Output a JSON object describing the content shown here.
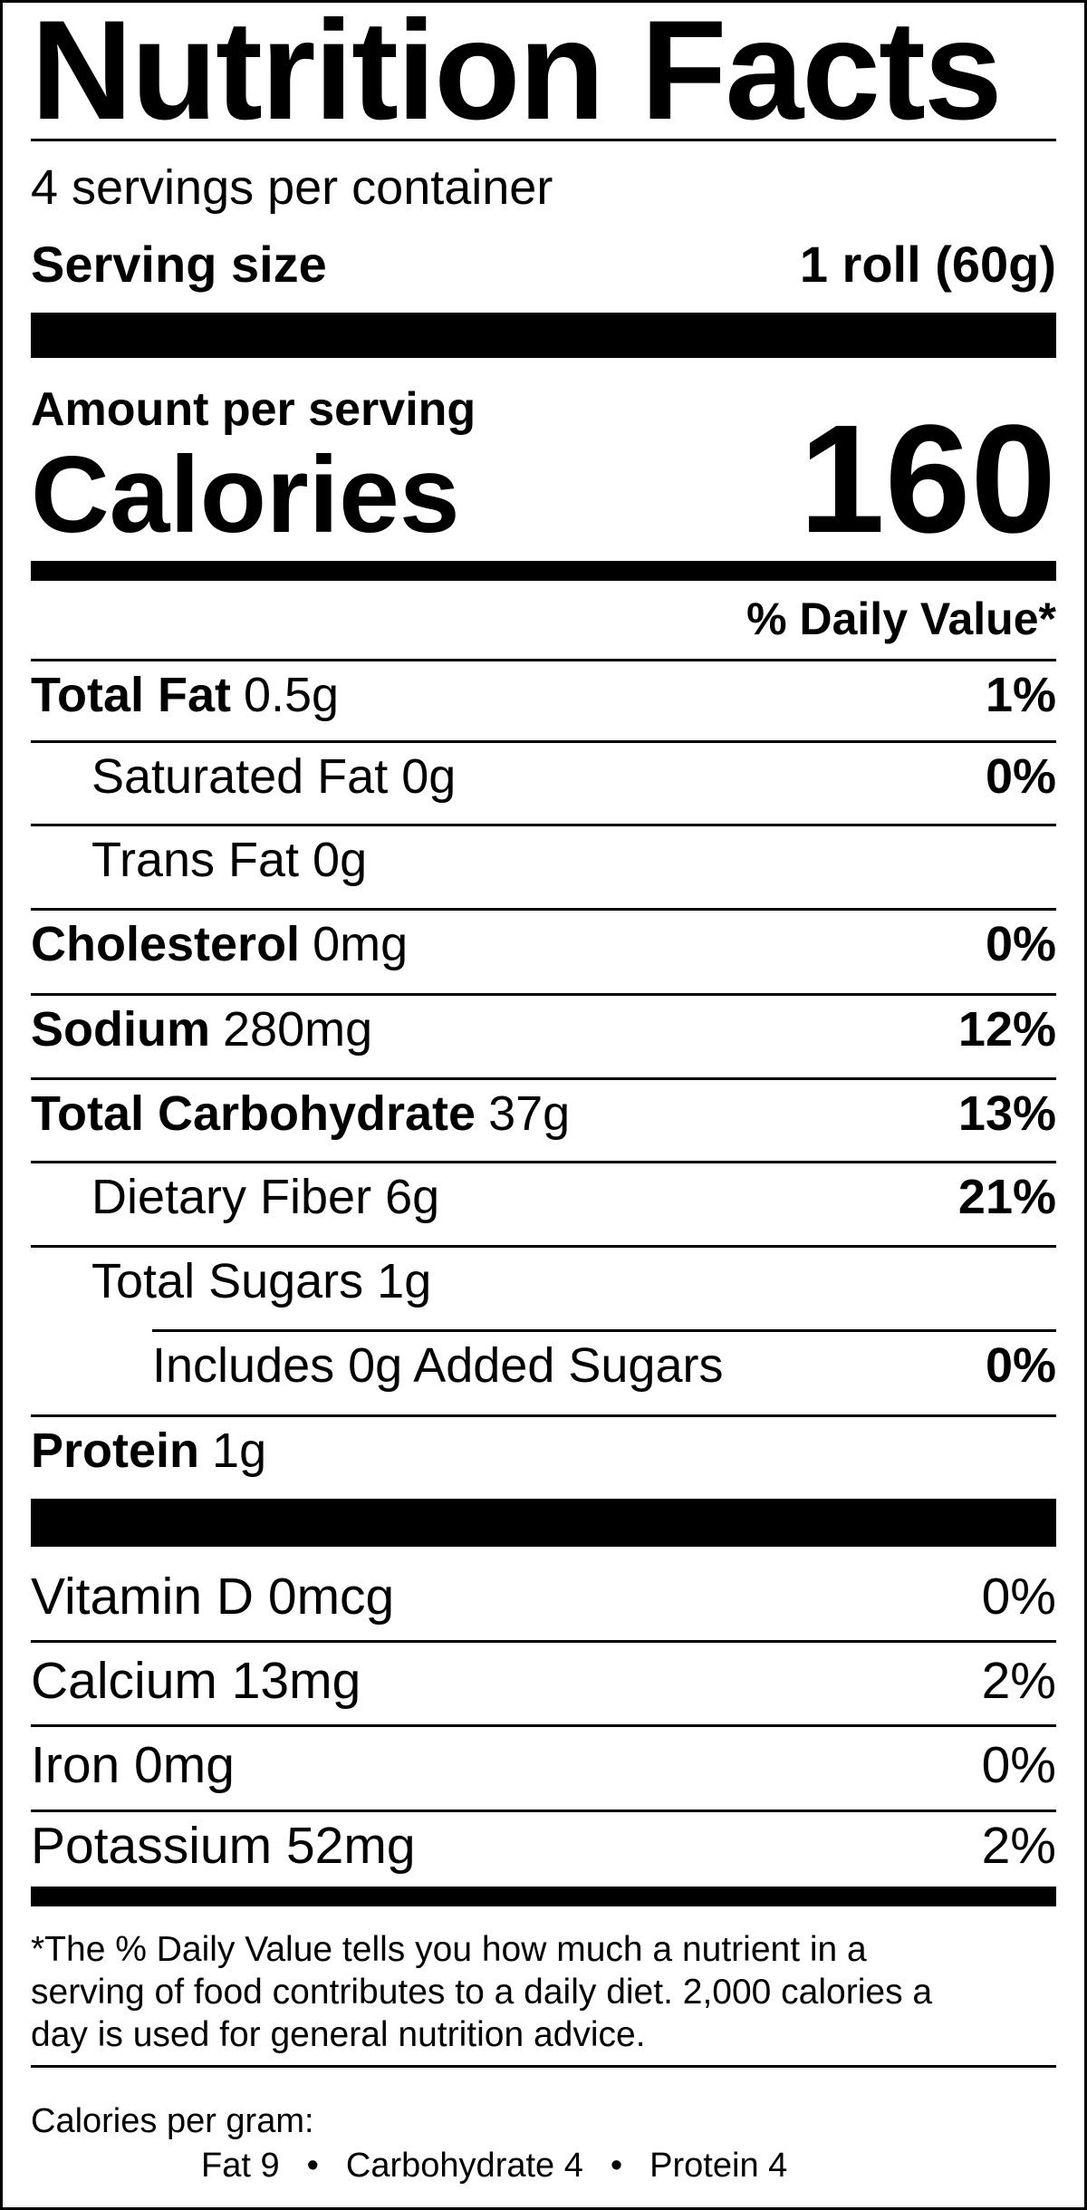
{
  "title": "Nutrition Facts",
  "servings_per_container": "4 servings per container",
  "serving_size": {
    "label": "Serving size",
    "value": "1 roll (60g)"
  },
  "amount_per_serving": "Amount per serving",
  "calories": {
    "label": "Calories",
    "value": "160"
  },
  "daily_value_header": "% Daily Value*",
  "nutrients": [
    {
      "name": "Total Fat",
      "amount": "0.5g",
      "dv": "1%",
      "level": 0
    },
    {
      "name": "Saturated Fat 0g",
      "amount": "",
      "dv": "0%",
      "level": 1
    },
    {
      "name": "Trans Fat 0g",
      "amount": "",
      "dv": "",
      "level": 1
    },
    {
      "name": "Cholesterol",
      "amount": "0mg",
      "dv": "0%",
      "level": 0
    },
    {
      "name": "Sodium",
      "amount": "280mg",
      "dv": "12%",
      "level": 0
    },
    {
      "name": "Total Carbohydrate",
      "amount": "37g",
      "dv": "13%",
      "level": 0
    },
    {
      "name": "Dietary Fiber 6g",
      "amount": "",
      "dv": "21%",
      "level": 1
    },
    {
      "name": "Total Sugars 1g",
      "amount": "",
      "dv": "",
      "level": 1
    },
    {
      "name": "Includes 0g Added Sugars",
      "amount": "",
      "dv": "0%",
      "level": 2
    },
    {
      "name": "Protein",
      "amount": "1g",
      "dv": "",
      "level": 0
    }
  ],
  "vitamins": [
    {
      "name": "Vitamin D 0mcg",
      "dv": "0%"
    },
    {
      "name": "Calcium 13mg",
      "dv": "2%"
    },
    {
      "name": "Iron 0mg",
      "dv": "0%"
    },
    {
      "name": "Potassium 52mg",
      "dv": "2%"
    }
  ],
  "footnote": {
    "lines": [
      "*The % Daily Value tells you how much a nutrient in a",
      "serving of food contributes to a daily diet. 2,000 calories a",
      "day is used for general nutrition advice."
    ]
  },
  "calories_per_gram": {
    "label": "Calories per gram:",
    "fat": "Fat 9",
    "carbohydrate": "Carbohydrate 4",
    "protein": "Protein 4",
    "separator": "•"
  }
}
